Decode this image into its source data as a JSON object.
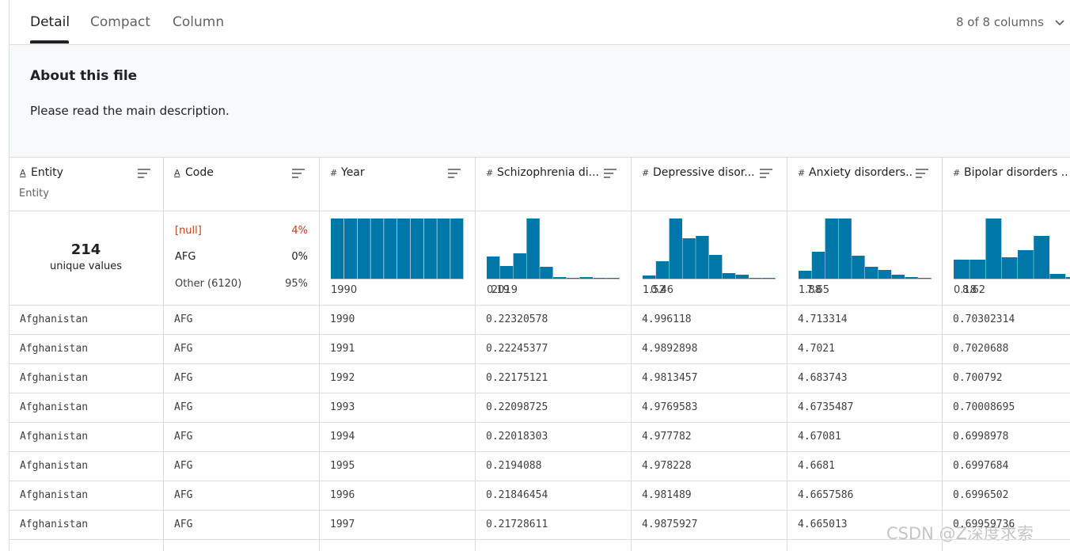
{
  "tabs": [
    "Detail",
    "Compact",
    "Column"
  ],
  "column_count": "8 of 8 columns",
  "about": {
    "title": "About this file",
    "text": "Please read the main description."
  },
  "columns": [
    {
      "icon": "A",
      "name": "Entity",
      "subtitle": "Entity"
    },
    {
      "icon": "A",
      "name": "Code"
    },
    {
      "icon": "#",
      "name": "Year"
    },
    {
      "icon": "#",
      "name": "Schizophrenia di..."
    },
    {
      "icon": "#",
      "name": "Depressive disor..."
    },
    {
      "icon": "#",
      "name": "Anxiety disorders..."
    },
    {
      "icon": "#",
      "name": "Bipolar disorders ..."
    }
  ],
  "summary": {
    "entity": {
      "count": "214",
      "label": "unique values"
    },
    "code": [
      [
        "[null]",
        "4%"
      ],
      [
        "AFG",
        "0%"
      ],
      [
        "Other (6120)",
        "95%"
      ]
    ],
    "histograms": [
      {
        "counts": [
          100,
          100,
          100,
          100,
          100,
          100,
          100,
          100,
          100,
          100
        ],
        "min": 1990,
        "max": 2019
      },
      {
        "counts": [
          28,
          16,
          32,
          76,
          15,
          2,
          1,
          2,
          1,
          1
        ],
        "min": 0.19,
        "max": 0.46
      },
      {
        "counts": [
          4,
          22,
          76,
          51,
          54,
          30,
          7,
          5,
          1,
          1
        ],
        "min": 1.52,
        "max": 7.65
      },
      {
        "counts": [
          10,
          34,
          76,
          76,
          29,
          15,
          11,
          5,
          2,
          1
        ],
        "min": 1.88,
        "max": 8.62
      },
      {
        "counts": [
          24,
          24,
          76,
          27,
          36,
          54,
          6,
          2
        ],
        "min": 0.18
      }
    ]
  },
  "rows": [
    [
      "Afghanistan",
      "AFG",
      "1990",
      "0.22320578",
      "4.996118",
      "4.713314",
      "0.70302314"
    ],
    [
      "Afghanistan",
      "AFG",
      "1991",
      "0.22245377",
      "4.9892898",
      "4.7021",
      "0.7020688"
    ],
    [
      "Afghanistan",
      "AFG",
      "1992",
      "0.22175121",
      "4.9813457",
      "4.683743",
      "0.700792"
    ],
    [
      "Afghanistan",
      "AFG",
      "1993",
      "0.22098725",
      "4.9769583",
      "4.6735487",
      "0.70008695"
    ],
    [
      "Afghanistan",
      "AFG",
      "1994",
      "0.22018303",
      "4.977782",
      "4.67081",
      "0.6998978"
    ],
    [
      "Afghanistan",
      "AFG",
      "1995",
      "0.2194088",
      "4.978228",
      "4.6681",
      "0.6997684"
    ],
    [
      "Afghanistan",
      "AFG",
      "1996",
      "0.21846454",
      "4.981489",
      "4.6657586",
      "0.6996502"
    ],
    [
      "Afghanistan",
      "AFG",
      "1997",
      "0.21728611",
      "4.9875927",
      "4.665013",
      "0.69959736"
    ]
  ],
  "watermark": "CSDN @Z深度求索"
}
